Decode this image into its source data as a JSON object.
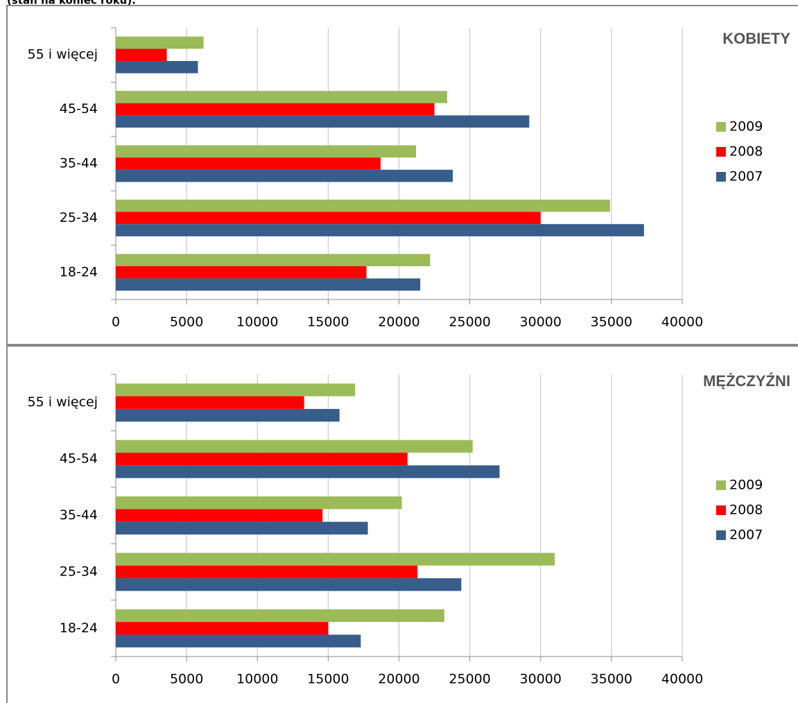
{
  "header": {
    "subtitle": "(stan na koniec roku)."
  },
  "chart_data": [
    {
      "type": "bar",
      "orientation": "horizontal",
      "title": "KOBIETY",
      "categories": [
        "18-24",
        "25-34",
        "35-44",
        "45-54",
        "55 i więcej"
      ],
      "series": [
        {
          "name": "2009",
          "color": "#9bbb59",
          "values": [
            22200,
            34900,
            21200,
            23400,
            6200
          ]
        },
        {
          "name": "2008",
          "color": "#ff0000",
          "values": [
            17700,
            30000,
            18700,
            22500,
            3600
          ]
        },
        {
          "name": "2007",
          "color": "#385d8a",
          "values": [
            21500,
            37300,
            23800,
            29200,
            5800
          ]
        }
      ],
      "xlim": [
        0,
        40000
      ],
      "xticks": [
        0,
        5000,
        10000,
        15000,
        20000,
        25000,
        30000,
        35000,
        40000
      ],
      "grid": true,
      "legend": "right"
    },
    {
      "type": "bar",
      "orientation": "horizontal",
      "title": "MĘŻCZYŹNI",
      "categories": [
        "18-24",
        "25-34",
        "35-44",
        "45-54",
        "55 i więcej"
      ],
      "series": [
        {
          "name": "2009",
          "color": "#9bbb59",
          "values": [
            23200,
            31000,
            20200,
            25200,
            16900
          ]
        },
        {
          "name": "2008",
          "color": "#ff0000",
          "values": [
            15000,
            21300,
            14600,
            20600,
            13300
          ]
        },
        {
          "name": "2007",
          "color": "#385d8a",
          "values": [
            17300,
            24400,
            17800,
            27100,
            15800
          ]
        }
      ],
      "xlim": [
        0,
        40000
      ],
      "xticks": [
        0,
        5000,
        10000,
        15000,
        20000,
        25000,
        30000,
        35000,
        40000
      ],
      "grid": true,
      "legend": "right"
    }
  ]
}
